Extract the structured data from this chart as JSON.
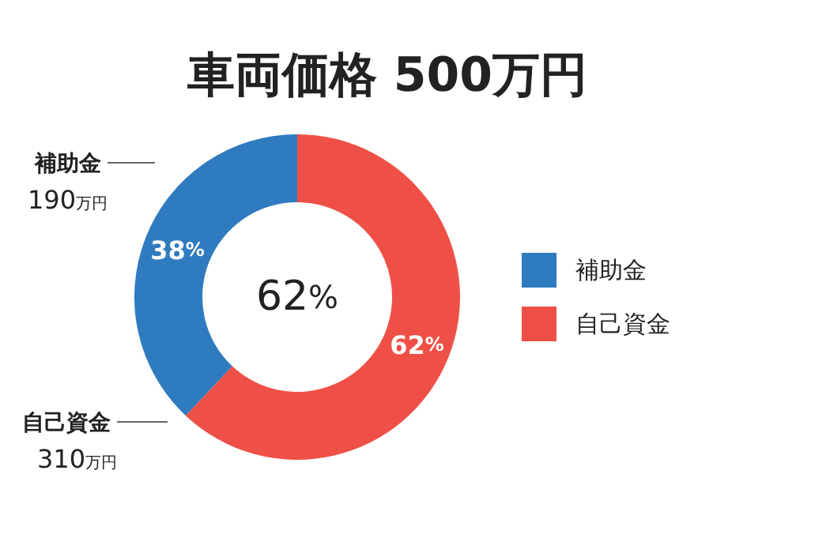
{
  "chart_data": {
    "type": "donut",
    "title": "車両価格 500万円",
    "categories": [
      "補助金",
      "自己資金"
    ],
    "values": [
      38,
      62
    ],
    "colors": [
      "#2f7bbf",
      "#ee5047"
    ],
    "value_labels": [
      "38%",
      "62%"
    ],
    "annotations": [
      "62%",
      "190万円",
      "310万円"
    ],
    "legend": "right"
  }
}
